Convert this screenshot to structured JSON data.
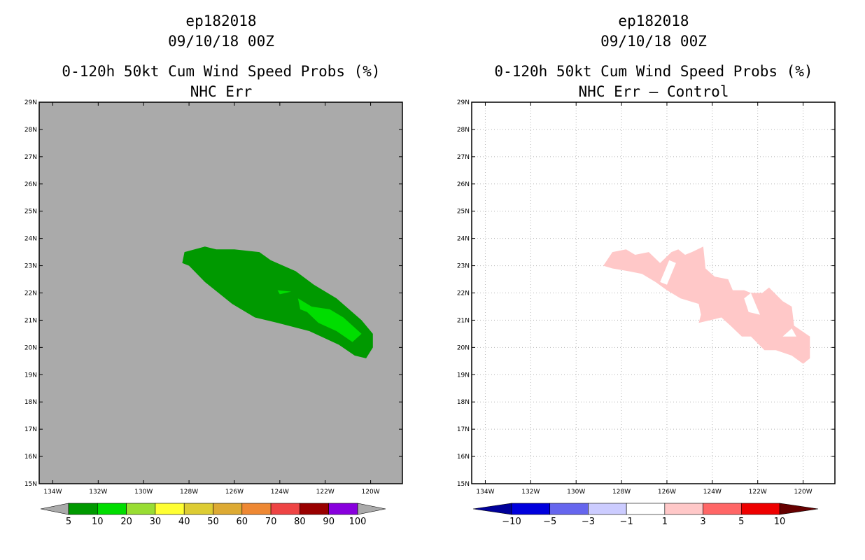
{
  "panels": [
    {
      "storm": "ep182018",
      "datetime": "09/10/18 00Z",
      "product": "0-120h 50kt Cum Wind Speed Probs (%)",
      "subtitle": "NHC Err"
    },
    {
      "storm": "ep182018",
      "datetime": "09/10/18 00Z",
      "product": "0-120h 50kt Cum Wind Speed Probs (%)",
      "subtitle": "NHC Err – Control"
    }
  ],
  "chart_data": [
    {
      "type": "heatmap",
      "title": "0-120h 50kt Cum Wind Speed Probs (%)",
      "subtitle": "NHC Err",
      "background_color": "#aaaaaa",
      "lon_range": [
        -134.6,
        -118.6
      ],
      "lat_range": [
        15,
        29
      ],
      "x_ticks": [
        "134W",
        "132W",
        "130W",
        "128W",
        "126W",
        "124W",
        "122W",
        "120W"
      ],
      "x_tick_values": [
        -134,
        -132,
        -130,
        -128,
        -126,
        -124,
        -122,
        -120
      ],
      "y_ticks": [
        "15N",
        "16N",
        "17N",
        "18N",
        "19N",
        "20N",
        "21N",
        "22N",
        "23N",
        "24N",
        "25N",
        "26N",
        "27N",
        "28N",
        "29N"
      ],
      "y_tick_values": [
        15,
        16,
        17,
        18,
        19,
        20,
        21,
        22,
        23,
        24,
        25,
        26,
        27,
        28,
        29
      ],
      "grid": false,
      "regions": [
        {
          "level": "5-10",
          "color": "#009900",
          "polygon_lonlat": [
            [
              -128.2,
              23.5
            ],
            [
              -127.3,
              23.7
            ],
            [
              -126.8,
              23.6
            ],
            [
              -126.0,
              23.6
            ],
            [
              -124.9,
              23.5
            ],
            [
              -124.4,
              23.2
            ],
            [
              -123.3,
              22.8
            ],
            [
              -122.5,
              22.3
            ],
            [
              -121.5,
              21.8
            ],
            [
              -120.4,
              21.0
            ],
            [
              -119.9,
              20.5
            ],
            [
              -119.9,
              20.0
            ],
            [
              -120.2,
              19.6
            ],
            [
              -120.7,
              19.7
            ],
            [
              -121.4,
              20.1
            ],
            [
              -122.7,
              20.6
            ],
            [
              -124.1,
              20.9
            ],
            [
              -125.1,
              21.1
            ],
            [
              -126.1,
              21.6
            ],
            [
              -126.7,
              22.0
            ],
            [
              -127.3,
              22.4
            ],
            [
              -128.0,
              23.0
            ],
            [
              -128.3,
              23.1
            ]
          ]
        },
        {
          "level": "10-20",
          "color": "#00dd00",
          "polygon_lonlat": [
            [
              -123.2,
              21.8
            ],
            [
              -122.6,
              21.5
            ],
            [
              -121.8,
              21.4
            ],
            [
              -121.2,
              21.1
            ],
            [
              -120.4,
              20.5
            ],
            [
              -120.8,
              20.2
            ],
            [
              -121.5,
              20.6
            ],
            [
              -122.3,
              20.9
            ],
            [
              -122.8,
              21.3
            ],
            [
              -123.1,
              21.4
            ]
          ]
        },
        {
          "level": "10-20",
          "color": "#00dd00",
          "polygon_lonlat": [
            [
              -124.1,
              22.1
            ],
            [
              -123.5,
              22.05
            ],
            [
              -124.0,
              21.95
            ]
          ]
        }
      ],
      "colorbar": {
        "levels": [
          5,
          10,
          20,
          30,
          40,
          50,
          60,
          70,
          80,
          90,
          100
        ],
        "labels": [
          "5",
          "10",
          "20",
          "30",
          "40",
          "50",
          "60",
          "70",
          "80",
          "90",
          "100"
        ],
        "colors": [
          "#009900",
          "#00dd00",
          "#99dd33",
          "#ffff33",
          "#ddcc33",
          "#ddaa33",
          "#ee8833",
          "#ee4444",
          "#990000",
          "#8800dd"
        ],
        "low_extend_color": "#aaaaaa",
        "high_extend_color": "#aaaaaa"
      }
    },
    {
      "type": "heatmap",
      "title": "0-120h 50kt Cum Wind Speed Probs (%)",
      "subtitle": "NHC Err – Control",
      "background_color": "#ffffff",
      "lon_range": [
        -134.6,
        -118.6
      ],
      "lat_range": [
        15,
        29
      ],
      "x_ticks": [
        "134W",
        "132W",
        "130W",
        "128W",
        "126W",
        "124W",
        "122W",
        "120W"
      ],
      "x_tick_values": [
        -134,
        -132,
        -130,
        -128,
        -126,
        -124,
        -122,
        -120
      ],
      "y_ticks": [
        "15N",
        "16N",
        "17N",
        "18N",
        "19N",
        "20N",
        "21N",
        "22N",
        "23N",
        "24N",
        "25N",
        "26N",
        "27N",
        "28N",
        "29N"
      ],
      "y_tick_values": [
        15,
        16,
        17,
        18,
        19,
        20,
        21,
        22,
        23,
        24,
        25,
        26,
        27,
        28,
        29
      ],
      "grid": true,
      "regions": [
        {
          "level": "1-3",
          "color": "#ffc8c8",
          "polygon_lonlat": [
            [
              -128.8,
              23.0
            ],
            [
              -128.4,
              23.5
            ],
            [
              -127.8,
              23.6
            ],
            [
              -127.4,
              23.4
            ],
            [
              -126.8,
              23.5
            ],
            [
              -126.3,
              23.1
            ],
            [
              -125.8,
              23.5
            ],
            [
              -125.5,
              23.6
            ],
            [
              -125.2,
              23.4
            ],
            [
              -124.9,
              23.5
            ],
            [
              -124.4,
              23.7
            ],
            [
              -124.3,
              22.9
            ],
            [
              -123.9,
              22.6
            ],
            [
              -123.3,
              22.5
            ],
            [
              -123.1,
              22.1
            ],
            [
              -122.6,
              22.1
            ],
            [
              -122.3,
              22.0
            ],
            [
              -121.8,
              22.0
            ],
            [
              -121.5,
              22.2
            ],
            [
              -120.9,
              21.7
            ],
            [
              -120.5,
              21.5
            ],
            [
              -120.4,
              20.8
            ],
            [
              -119.7,
              20.4
            ],
            [
              -119.7,
              19.6
            ],
            [
              -120.0,
              19.4
            ],
            [
              -120.5,
              19.7
            ],
            [
              -121.2,
              19.9
            ],
            [
              -121.7,
              19.9
            ],
            [
              -122.3,
              20.4
            ],
            [
              -122.7,
              20.4
            ],
            [
              -123.2,
              20.8
            ],
            [
              -123.6,
              21.1
            ],
            [
              -124.6,
              20.9
            ],
            [
              -124.5,
              21.2
            ],
            [
              -124.6,
              21.6
            ],
            [
              -125.4,
              21.8
            ],
            [
              -126.0,
              22.1
            ],
            [
              -126.5,
              22.4
            ],
            [
              -127.1,
              22.7
            ],
            [
              -127.7,
              22.8
            ],
            [
              -128.4,
              22.9
            ]
          ]
        }
      ],
      "holes_lonlat": [
        [
          [
            -126.3,
            22.4
          ],
          [
            -125.9,
            23.2
          ],
          [
            -125.6,
            23.1
          ],
          [
            -126.0,
            22.3
          ]
        ],
        [
          [
            -122.4,
            21.3
          ],
          [
            -121.9,
            21.2
          ],
          [
            -122.3,
            22.0
          ],
          [
            -122.6,
            21.8
          ]
        ],
        [
          [
            -120.5,
            20.7
          ],
          [
            -120.3,
            20.4
          ],
          [
            -120.9,
            20.4
          ]
        ]
      ],
      "colorbar": {
        "levels": [
          -10,
          -5,
          -3,
          -1,
          1,
          3,
          5,
          10
        ],
        "labels": [
          "-10",
          "-5",
          "-3",
          "-1",
          "1",
          "3",
          "5",
          "10"
        ],
        "colors": [
          "#0000dd",
          "#6666ee",
          "#ccccff",
          "#ffffff",
          "#ffc8c8",
          "#ff6666",
          "#ee0000"
        ],
        "low_extend_color": "#000099",
        "high_extend_color": "#660000"
      }
    }
  ]
}
